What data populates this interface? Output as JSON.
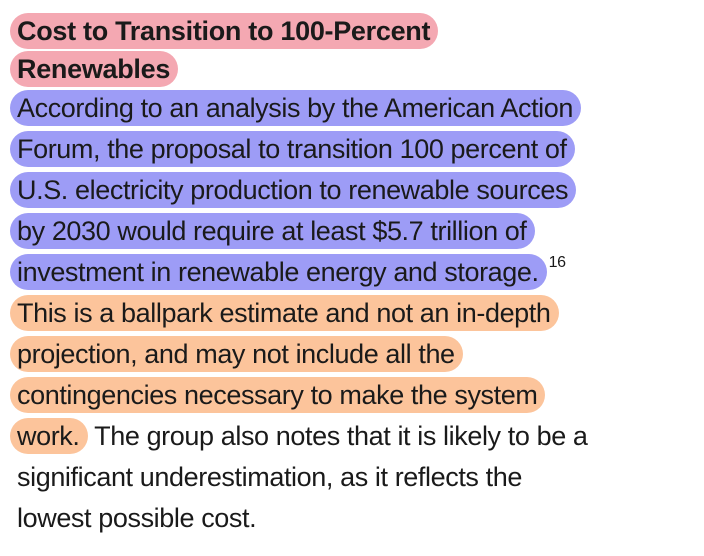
{
  "heading": {
    "lines": [
      "Cost to Transition to 100-Percent",
      "Renewables"
    ]
  },
  "paragraph": {
    "blue_lines": [
      "According to an analysis by the American Action",
      "Forum, the proposal to transition 100 percent of",
      "U.S. electricity production to renewable sources",
      "by 2030 would require at least $5.7 trillion of",
      "investment in renewable energy and storage."
    ],
    "footnote": "16",
    "orange_lines": [
      "This is a ballpark estimate and not an in-depth",
      "projection, and may not include all the",
      "contingencies necessary to make the system",
      "work."
    ],
    "plain_lines": [
      "The group also notes that it is likely to be a",
      "significant underestimation, as it reflects the",
      "lowest possible cost."
    ]
  },
  "colors": {
    "heading_highlight": "#f4a8b2",
    "claim_highlight": "#9d9cf6",
    "caveat_highlight": "#fcc49b"
  }
}
